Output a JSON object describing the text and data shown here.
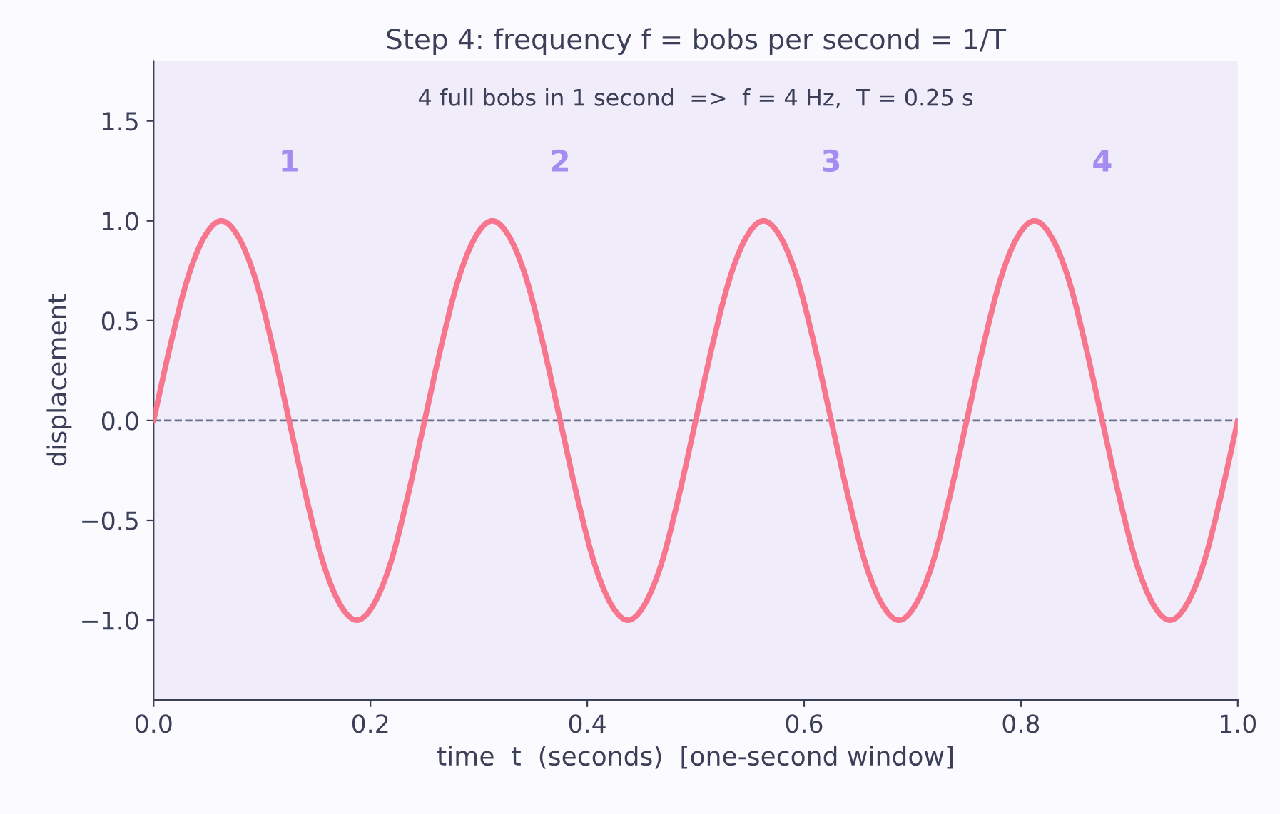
{
  "chart_data": {
    "type": "line",
    "title": "Step 4: frequency f = bobs per second = 1/T",
    "xlabel": "time  t  (seconds)  [one-second window]",
    "ylabel": "displacement",
    "annotations": [
      "4 full bobs in 1 second  =>  f = 4 Hz,  T = 0.25 s",
      "1",
      "2",
      "3",
      "4"
    ],
    "x": [
      0,
      0.0156,
      0.0313,
      0.0469,
      0.0625,
      0.0781,
      0.0938,
      0.1094,
      0.125,
      0.1406,
      0.1563,
      0.1719,
      0.1875,
      0.2031,
      0.2188,
      0.2344,
      0.25,
      0.2656,
      0.2813,
      0.2969,
      0.3125,
      0.3281,
      0.3438,
      0.3594,
      0.375,
      0.3906,
      0.4063,
      0.4219,
      0.4375,
      0.4531,
      0.4688,
      0.4844,
      0.5,
      0.5156,
      0.5313,
      0.5469,
      0.5625,
      0.5781,
      0.5938,
      0.6094,
      0.625,
      0.6406,
      0.6563,
      0.6719,
      0.6875,
      0.7031,
      0.7188,
      0.7344,
      0.75,
      0.7656,
      0.7813,
      0.7969,
      0.8125,
      0.8281,
      0.8438,
      0.8594,
      0.875,
      0.8906,
      0.9063,
      0.9219,
      0.9375,
      0.9531,
      0.9688,
      0.9844,
      1.0
    ],
    "series": [
      {
        "color": "#f7768e",
        "values": [
          0,
          0.38,
          0.71,
          0.92,
          1,
          0.92,
          0.71,
          0.38,
          0,
          -0.38,
          -0.71,
          -0.92,
          -1,
          -0.92,
          -0.71,
          -0.38,
          0,
          0.38,
          0.71,
          0.92,
          1,
          0.92,
          0.71,
          0.38,
          0,
          -0.38,
          -0.71,
          -0.92,
          -1,
          -0.92,
          -0.71,
          -0.38,
          0,
          0.38,
          0.71,
          0.92,
          1,
          0.92,
          0.71,
          0.38,
          0,
          -0.38,
          -0.71,
          -0.92,
          -1,
          -0.92,
          -0.71,
          -0.38,
          0,
          0.38,
          0.71,
          0.92,
          1,
          0.92,
          0.71,
          0.38,
          0,
          -0.38,
          -0.71,
          -0.92,
          -1,
          -0.92,
          -0.71,
          -0.38,
          0
        ]
      }
    ],
    "ref_lines": [
      {
        "axis": "y",
        "value": 0,
        "color": "#6b7089",
        "line_style": "dashed"
      }
    ],
    "xlim": [
      0.0,
      1.0
    ],
    "xticks": [
      {
        "value": 0,
        "label": "0.0"
      },
      0.2,
      0.4,
      0.6,
      0.8,
      {
        "value": 1,
        "label": "1.0"
      }
    ],
    "ylim": [
      -1.4,
      1.8
    ],
    "yticks": [
      {
        "value": -1.0,
        "label": "−1.0"
      },
      {
        "value": -0.5,
        "label": "−0.5"
      },
      {
        "value": 0,
        "label": "0.0"
      },
      0.5,
      {
        "value": 1,
        "label": "1.0"
      },
      1.5
    ],
    "grid": false,
    "legend": false,
    "marker": "none",
    "line_style": "solid"
  }
}
